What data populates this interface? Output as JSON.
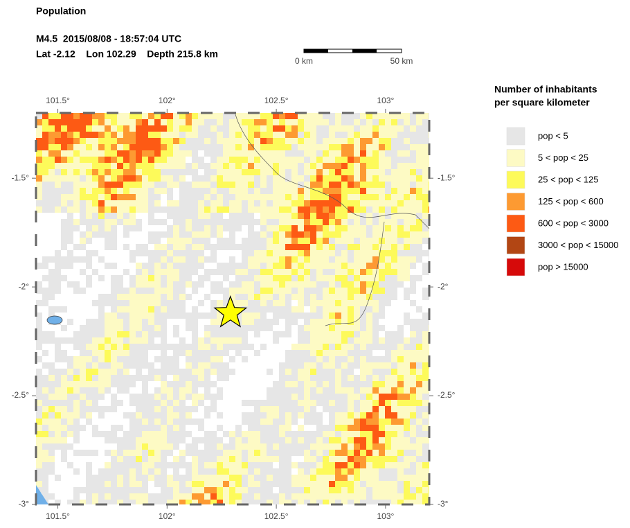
{
  "header": {
    "title": "Population",
    "event": "M4.5  2015/08/08 - 18:57:04 UTC",
    "location": "Lat -2.12    Lon 102.29    Depth 215.8 km"
  },
  "scale_bar": {
    "start": "0 km",
    "end": "50 km"
  },
  "map": {
    "xlim": [
      101.4,
      103.2
    ],
    "ylim": [
      -3,
      -1.2
    ],
    "xticks": [
      {
        "value": 101.5,
        "label": "101.5°"
      },
      {
        "value": 102,
        "label": "102°"
      },
      {
        "value": 102.5,
        "label": "102.5°"
      },
      {
        "value": 103,
        "label": "103°"
      }
    ],
    "yticks": [
      {
        "value": -1.5,
        "label": "-1.5°"
      },
      {
        "value": -2,
        "label": "-2°"
      },
      {
        "value": -2.5,
        "label": "-2.5°"
      },
      {
        "value": -3,
        "label": "-3°"
      }
    ],
    "epicenter": {
      "lon": 102.29,
      "lat": -2.12
    }
  },
  "legend": {
    "title_lines": [
      "Number of inhabitants",
      "per square kilometer"
    ],
    "items": [
      {
        "label": "pop < 5",
        "color": "#e6e6e6"
      },
      {
        "label": "5 < pop < 25",
        "color": "#fdfac4"
      },
      {
        "label": "25 < pop < 125",
        "color": "#fdfa5a"
      },
      {
        "label": "125 < pop < 600",
        "color": "#fd9a32"
      },
      {
        "label": "600 < pop < 3000",
        "color": "#fd5a14"
      },
      {
        "label": "3000 < pop < 15000",
        "color": "#b24614"
      },
      {
        "label": "pop > 15000",
        "color": "#d60a0a"
      }
    ]
  }
}
